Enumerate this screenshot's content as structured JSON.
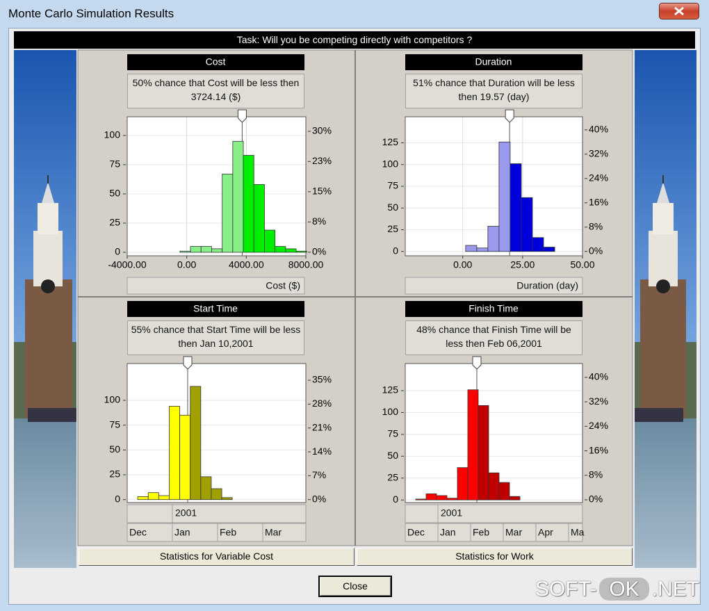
{
  "window": {
    "title": "Monte Carlo Simulation Results"
  },
  "task": "Task: Will you be competing directly with competitors ?",
  "chart_data": [
    {
      "type": "histogram",
      "title": "Cost",
      "note": "50% chance that Cost will be less then 3724.14 ($)",
      "x_label": "Cost ($)",
      "bins": [
        -460,
        250,
        960,
        1670,
        2380,
        3090,
        3800,
        4510,
        5220,
        5930,
        6640,
        7350,
        8060
      ],
      "values": [
        1,
        5,
        5,
        3,
        67,
        95,
        83,
        58,
        19,
        5,
        3,
        1
      ],
      "colors": [
        "#88ee88",
        "#88ee88",
        "#88ee88",
        "#88ee88",
        "#88ee88",
        "#88ee88",
        "#00ee00",
        "#00ee00",
        "#00ee00",
        "#00ee00",
        "#00ee00",
        "#00ee00"
      ],
      "marker": 3724.14,
      "xlim": [
        -4000,
        8000
      ],
      "xticks": [
        {
          "value": -4000,
          "label": "-4000.00"
        },
        {
          "value": 0,
          "label": "0.00"
        },
        {
          "value": 4000,
          "label": "4000.00"
        },
        {
          "value": 8000,
          "label": "8000.00"
        }
      ],
      "ylim": [
        -3,
        116
      ],
      "yticks": [
        0,
        25,
        50,
        75,
        100
      ],
      "y2lim": [
        -0.9,
        33.6
      ],
      "y2ticks": [
        {
          "value": 0,
          "label": "0%"
        },
        {
          "value": 7.5,
          "label": "8%"
        },
        {
          "value": 15,
          "label": "15%"
        },
        {
          "value": 22.5,
          "label": "23%"
        },
        {
          "value": 30,
          "label": "30%"
        }
      ],
      "grid": true
    },
    {
      "type": "histogram",
      "title": "Duration",
      "note": "51% chance that Duration will be less then 19.57 (day)",
      "x_label": "Duration (day)",
      "bins": [
        1.2,
        5.85,
        10.5,
        15.15,
        19.8,
        24.45,
        29.1,
        33.75,
        38.4
      ],
      "values": [
        7,
        4,
        29,
        126,
        101,
        62,
        16,
        5
      ],
      "colors": [
        "#9999ee",
        "#9999ee",
        "#9999ee",
        "#9999ee",
        "#0000dd",
        "#0000dd",
        "#0000dd",
        "#0000dd"
      ],
      "marker": 19.57,
      "xlim": [
        -24,
        50
      ],
      "xticks": [
        {
          "value": 0,
          "label": "0.00"
        },
        {
          "value": 25,
          "label": "25.00"
        },
        {
          "value": 50,
          "label": "50.00"
        }
      ],
      "ylim": [
        -5,
        155
      ],
      "yticks": [
        0,
        25,
        50,
        75,
        100,
        125
      ],
      "y2lim": [
        -1.43,
        44.3
      ],
      "y2ticks": [
        {
          "value": 0,
          "label": "0%"
        },
        {
          "value": 8,
          "label": "8%"
        },
        {
          "value": 16,
          "label": "16%"
        },
        {
          "value": 24,
          "label": "24%"
        },
        {
          "value": 32,
          "label": "32%"
        },
        {
          "value": 40,
          "label": "40%"
        }
      ],
      "grid": true
    },
    {
      "type": "bar",
      "title": "Start Time",
      "note": "55% chance that Start Time will be less then Jan 10,2001",
      "categories": [
        null,
        null,
        null,
        null,
        null,
        null,
        null,
        null,
        null,
        null,
        null,
        null,
        null,
        null,
        null,
        null,
        null
      ],
      "values": [
        0,
        3,
        7,
        4,
        94,
        85,
        114,
        23,
        11,
        2,
        0,
        0,
        0,
        0,
        0,
        0,
        0
      ],
      "colors": [
        "#ffff00",
        "#ffff00",
        "#ffff00",
        "#ffff00",
        "#ffff00",
        "#ffff00",
        "#a0a000",
        "#a0a000",
        "#a0a000",
        "#a0a000",
        "#a0a000",
        "#a0a000",
        "#a0a000",
        "#a0a000",
        "#a0a000",
        "#a0a000",
        "#a0a000"
      ],
      "year_label": "2001",
      "months": [
        "Dec",
        "Jan",
        "Feb",
        "Mar"
      ],
      "ylim": [
        -3,
        137
      ],
      "yticks": [
        0,
        25,
        50,
        75,
        100
      ],
      "y2lim": [
        -0.87,
        39.9
      ],
      "y2ticks": [
        {
          "value": 0,
          "label": "0%"
        },
        {
          "value": 7,
          "label": "7%"
        },
        {
          "value": 14,
          "label": "14%"
        },
        {
          "value": 21,
          "label": "21%"
        },
        {
          "value": 28,
          "label": "28%"
        },
        {
          "value": 35,
          "label": "35%"
        }
      ],
      "grid": true
    },
    {
      "type": "bar",
      "title": "Finish Time",
      "note": "48% chance that Finish Time will be less then Feb 06,2001",
      "categories": [
        null,
        null,
        null,
        null,
        null,
        null,
        null,
        null,
        null,
        null,
        null,
        null,
        null,
        null,
        null,
        null,
        null
      ],
      "values": [
        0,
        1,
        7,
        5,
        2,
        37,
        126,
        108,
        31,
        20,
        4,
        0,
        0,
        0,
        0,
        0,
        0
      ],
      "colors": [
        "#ff0000",
        "#ff0000",
        "#ff0000",
        "#ff0000",
        "#ff0000",
        "#ff0000",
        "#ff0000",
        "#c00000",
        "#c00000",
        "#c00000",
        "#c00000",
        "#c00000",
        "#c00000",
        "#c00000",
        "#c00000",
        "#c00000",
        "#c00000"
      ],
      "year_label": "2001",
      "months": [
        "Dec",
        "Jan",
        "Feb",
        "Mar",
        "Apr",
        "Ma"
      ],
      "ylim": [
        -3,
        156
      ],
      "yticks": [
        0,
        25,
        50,
        75,
        100,
        125
      ],
      "y2lim": [
        -0.9,
        44.5
      ],
      "y2ticks": [
        {
          "value": 0,
          "label": "0%"
        },
        {
          "value": 8,
          "label": "8%"
        },
        {
          "value": 16,
          "label": "16%"
        },
        {
          "value": 24,
          "label": "24%"
        },
        {
          "value": 32,
          "label": "32%"
        },
        {
          "value": 40,
          "label": "40%"
        }
      ],
      "grid": true
    }
  ],
  "buttons": [
    "Statistics for Variable Cost",
    "Statistics for Work",
    "Close"
  ],
  "watermark": {
    "left": "SOFT-",
    "badge": "OK",
    "right": ".NET"
  }
}
